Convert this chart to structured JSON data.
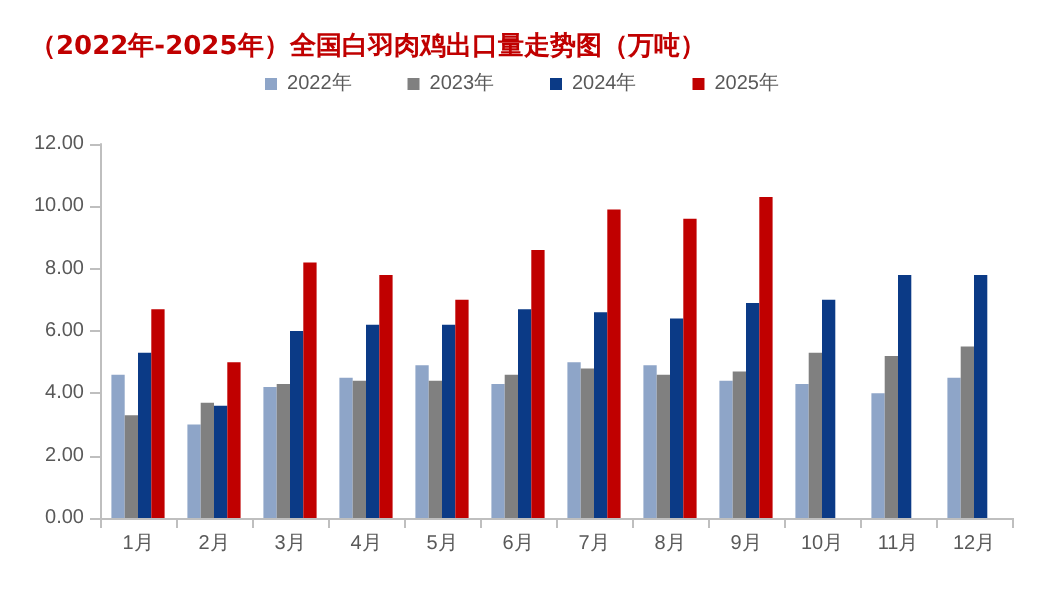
{
  "chart_data": {
    "type": "bar",
    "title": "（2022年-2025年）全国白羽肉鸡出口量走势图（万吨）",
    "categories": [
      "1月",
      "2月",
      "3月",
      "4月",
      "5月",
      "6月",
      "7月",
      "8月",
      "9月",
      "10月",
      "11月",
      "12月"
    ],
    "series": [
      {
        "name": "2022年",
        "color": "#8ea5c8",
        "values": [
          4.6,
          3.0,
          4.2,
          4.5,
          4.9,
          4.3,
          5.0,
          4.9,
          4.4,
          4.3,
          4.0,
          4.5
        ]
      },
      {
        "name": "2023年",
        "color": "#808080",
        "values": [
          3.3,
          3.7,
          4.3,
          4.4,
          4.4,
          4.6,
          4.8,
          4.6,
          4.7,
          5.3,
          5.2,
          5.5
        ]
      },
      {
        "name": "2024年",
        "color": "#0b3a86",
        "values": [
          5.3,
          3.6,
          6.0,
          6.2,
          6.2,
          6.7,
          6.6,
          6.4,
          6.9,
          7.0,
          7.8,
          7.8
        ]
      },
      {
        "name": "2025年",
        "color": "#c00000",
        "values": [
          6.7,
          5.0,
          8.2,
          7.8,
          7.0,
          8.6,
          9.9,
          9.6,
          10.3,
          null,
          null,
          null
        ]
      }
    ],
    "ylim": [
      0,
      12
    ],
    "yticks": [
      {
        "value": 0,
        "label": "0.00"
      },
      {
        "value": 2,
        "label": "2.00"
      },
      {
        "value": 4,
        "label": "4.00"
      },
      {
        "value": 6,
        "label": "6.00"
      },
      {
        "value": 8,
        "label": "8.00"
      },
      {
        "value": 10,
        "label": "10.00"
      },
      {
        "value": 12,
        "label": "12.00"
      }
    ],
    "grid": false,
    "legend": "top"
  }
}
